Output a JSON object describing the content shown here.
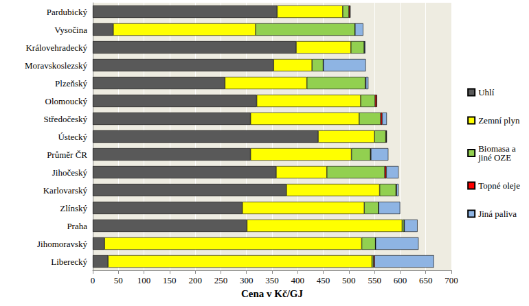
{
  "chart_data": {
    "type": "bar",
    "orientation": "horizontal",
    "stacked": true,
    "grid": true,
    "legend": "right",
    "x_label": "Cena v Kč/GJ",
    "xlim": [
      0,
      700
    ],
    "xticks": [
      0,
      50,
      100,
      150,
      200,
      250,
      300,
      350,
      400,
      450,
      500,
      550,
      600,
      650,
      700
    ],
    "categories": [
      "Pardubický",
      "Vysočina",
      "Královehradecký",
      "Moravskoslezský",
      "Plzeňský",
      "Olomoucký",
      "Středočeský",
      "Ústecký",
      "Průměr ČR",
      "Jihočeský",
      "Karlovarský",
      "Zlínský",
      "Praha",
      "Jihomoravský",
      "Liberecký"
    ],
    "series": [
      {
        "name": "Uhlí",
        "color": "#595959",
        "values": [
          360,
          40,
          397,
          353,
          258,
          320,
          308,
          440,
          308,
          358,
          378,
          292,
          301,
          23,
          30
        ]
      },
      {
        "name": "Zemní plyn",
        "color": "#ffff00",
        "values": [
          128,
          278,
          107,
          75,
          160,
          203,
          212,
          110,
          197,
          99,
          182,
          238,
          303,
          502,
          515
        ]
      },
      {
        "name": "Biomasa a jiné OZE",
        "color": "#92d050",
        "values": [
          12,
          194,
          26,
          22,
          114,
          28,
          42,
          22,
          37,
          113,
          32,
          28,
          4,
          27,
          3
        ]
      },
      {
        "name": "Topné oleje",
        "color": "#ff0000",
        "values": [
          2,
          0,
          0,
          0,
          1,
          3,
          3,
          1,
          1,
          3,
          1,
          0,
          0,
          0,
          2
        ]
      },
      {
        "name": "Jiná paliva",
        "color": "#8eb4e3",
        "values": [
          1,
          16,
          2,
          83,
          5,
          1,
          9,
          1,
          34,
          24,
          4,
          42,
          26,
          84,
          116
        ]
      }
    ]
  }
}
